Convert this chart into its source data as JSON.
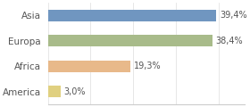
{
  "categories": [
    "Asia",
    "Europa",
    "Africa",
    "America"
  ],
  "values": [
    39.4,
    38.4,
    19.3,
    3.0
  ],
  "labels": [
    "39,4%",
    "38,4%",
    "19,3%",
    "3,0%"
  ],
  "bar_colors": [
    "#7096c0",
    "#a8bb8a",
    "#e8b98a",
    "#e0d080"
  ],
  "background_color": "#ffffff",
  "xlim": [
    0,
    46
  ],
  "bar_height": 0.45,
  "label_fontsize": 7,
  "category_fontsize": 7.5,
  "label_color": "#555555",
  "grid_color": "#dddddd",
  "spine_color": "#cccccc"
}
